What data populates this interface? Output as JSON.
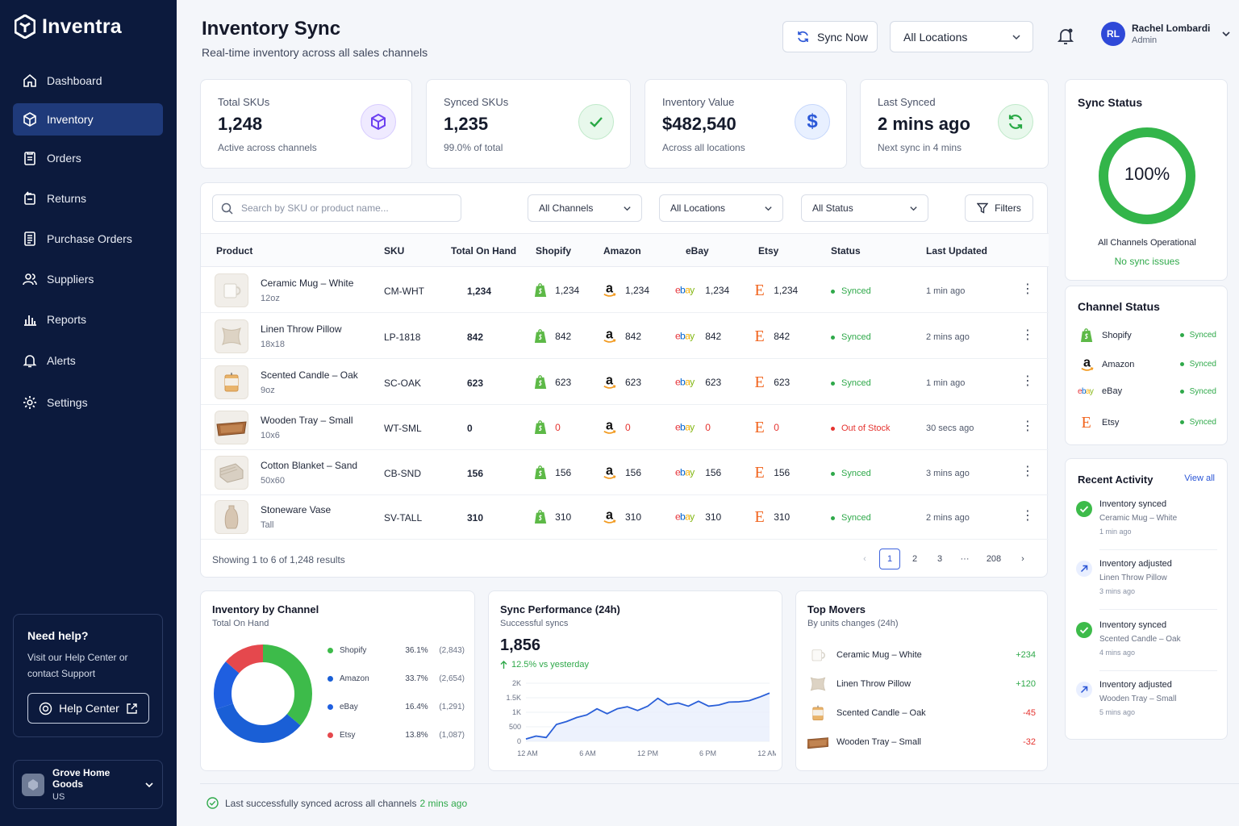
{
  "brand": {
    "name": "Inventra"
  },
  "nav": [
    {
      "label": "Dashboard",
      "icon": "home-icon"
    },
    {
      "label": "Inventory",
      "icon": "box-icon",
      "active": true
    },
    {
      "label": "Orders",
      "icon": "clipboard-icon"
    },
    {
      "label": "Returns",
      "icon": "return-icon"
    },
    {
      "label": "Purchase Orders",
      "icon": "document-icon"
    },
    {
      "label": "Suppliers",
      "icon": "users-icon"
    },
    {
      "label": "Reports",
      "icon": "bar-chart-icon"
    },
    {
      "label": "Alerts",
      "icon": "bell-icon"
    },
    {
      "label": "Settings",
      "icon": "gear-icon"
    }
  ],
  "help": {
    "title": "Need help?",
    "text": "Visit our Help Center or contact Support",
    "button": "Help Center"
  },
  "store": {
    "name": "Grove Home Goods",
    "region": "US"
  },
  "header": {
    "title": "Inventory Sync",
    "subtitle": "Real-time inventory across all sales channels",
    "sync_button": "Sync Now",
    "location": "All Locations"
  },
  "user": {
    "initials": "RL",
    "name": "Rachel Lombardi",
    "role": "Admin"
  },
  "kpis": {
    "total": {
      "label": "Total SKUs",
      "value": "1,248",
      "sub": "Active across channels"
    },
    "synced": {
      "label": "Synced SKUs",
      "value": "1,235",
      "sub": "99.0% of total"
    },
    "value": {
      "label": "Inventory Value",
      "value": "$482,540",
      "sub": "Across all locations"
    },
    "last": {
      "label": "Last Synced",
      "value": "2 mins ago",
      "sub": "Next sync in 4 mins"
    }
  },
  "filters": {
    "search_placeholder": "Search by SKU or product name...",
    "channels": "All Channels",
    "locations": "All Locations",
    "status": "All Status",
    "filters_button": "Filters"
  },
  "table": {
    "headers": {
      "product": "Product",
      "sku": "SKU",
      "total": "Total On Hand",
      "shopify": "Shopify",
      "amazon": "Amazon",
      "ebay": "eBay",
      "etsy": "Etsy",
      "status": "Status",
      "updated": "Last Updated"
    },
    "rows": [
      {
        "name": "Ceramic Mug – White",
        "variant": "12oz",
        "sku": "CM-WHT",
        "total": "1,234",
        "shopify": "1,234",
        "amazon": "1,234",
        "ebay": "1,234",
        "etsy": "1,234",
        "status": "Synced",
        "updated": "1 min ago"
      },
      {
        "name": "Linen Throw Pillow",
        "variant": "18x18",
        "sku": "LP-1818",
        "total": "842",
        "shopify": "842",
        "amazon": "842",
        "ebay": "842",
        "etsy": "842",
        "status": "Synced",
        "updated": "2 mins ago"
      },
      {
        "name": "Scented Candle – Oak",
        "variant": "9oz",
        "sku": "SC-OAK",
        "total": "623",
        "shopify": "623",
        "amazon": "623",
        "ebay": "623",
        "etsy": "623",
        "status": "Synced",
        "updated": "1 min ago"
      },
      {
        "name": "Wooden Tray – Small",
        "variant": "10x6",
        "sku": "WT-SML",
        "total": "0",
        "shopify": "0",
        "amazon": "0",
        "ebay": "0",
        "etsy": "0",
        "status": "Out of Stock",
        "updated": "30 secs ago"
      },
      {
        "name": "Cotton Blanket – Sand",
        "variant": "50x60",
        "sku": "CB-SND",
        "total": "156",
        "shopify": "156",
        "amazon": "156",
        "ebay": "156",
        "etsy": "156",
        "status": "Synced",
        "updated": "3 mins ago"
      },
      {
        "name": "Stoneware Vase",
        "variant": "Tall",
        "sku": "SV-TALL",
        "total": "310",
        "shopify": "310",
        "amazon": "310",
        "ebay": "310",
        "etsy": "310",
        "status": "Synced",
        "updated": "2 mins ago"
      }
    ],
    "showing": "Showing 1 to 6 of 1,248 results",
    "pages": [
      "1",
      "2",
      "3",
      "···",
      "208"
    ]
  },
  "sync_status": {
    "title": "Sync Status",
    "percent": "100%",
    "percent_value": 100,
    "line1": "All Channels Operational",
    "line2": "No sync issues"
  },
  "channel_status": {
    "title": "Channel Status",
    "items": [
      {
        "name": "Shopify",
        "status": "Synced"
      },
      {
        "name": "Amazon",
        "status": "Synced"
      },
      {
        "name": "eBay",
        "status": "Synced"
      },
      {
        "name": "Etsy",
        "status": "Synced"
      }
    ]
  },
  "activity": {
    "title": "Recent Activity",
    "view_all": "View all",
    "items": [
      {
        "title": "Inventory synced",
        "item": "Ceramic Mug – White",
        "time": "1 min ago",
        "kind": "synced"
      },
      {
        "title": "Inventory adjusted",
        "item": "Linen Throw Pillow",
        "time": "3 mins ago",
        "kind": "adjusted"
      },
      {
        "title": "Inventory synced",
        "item": "Scented Candle – Oak",
        "time": "4 mins ago",
        "kind": "synced"
      },
      {
        "title": "Inventory adjusted",
        "item": "Wooden Tray – Small",
        "time": "5 mins ago",
        "kind": "adjusted"
      }
    ]
  },
  "by_channel": {
    "title": "Inventory by Channel",
    "subtitle": "Total On Hand"
  },
  "sync_perf": {
    "title": "Sync Performance (24h)",
    "subtitle": "Successful syncs",
    "value": "1,856",
    "delta": "12.5% vs yesterday"
  },
  "movers": {
    "title": "Top Movers",
    "subtitle": "By units changes (24h)",
    "items": [
      {
        "name": "Ceramic Mug – White",
        "change": "+234"
      },
      {
        "name": "Linen Throw Pillow",
        "change": "+120"
      },
      {
        "name": "Scented Candle – Oak",
        "change": "-45"
      },
      {
        "name": "Wooden Tray – Small",
        "change": "-32"
      }
    ]
  },
  "bottom": {
    "text": "Last successfully synced across all channels",
    "time": "2 mins ago"
  },
  "colors": {
    "shopify": "#3dbb4a",
    "amazon": "#1a5fd6",
    "ebay": "#1f5fe0",
    "etsy": "#e5484d",
    "green": "#2fa94a",
    "red": "#e5332f"
  },
  "chart_data": [
    {
      "type": "pie",
      "categories": [
        "Shopify",
        "Amazon",
        "eBay",
        "Etsy"
      ],
      "values": [
        2843,
        2654,
        1291,
        1087
      ],
      "percent_labels": [
        "36.1%",
        "33.7%",
        "16.4%",
        "13.8%"
      ],
      "count_labels": [
        "(2,843)",
        "(2,654)",
        "(1,291)",
        "(1,087)"
      ],
      "colors": [
        "#3dbb4a",
        "#1a5fd6",
        "#1f5fe0",
        "#e5484d"
      ],
      "title": "Inventory by Channel"
    },
    {
      "type": "area",
      "title": "Sync Performance (24h)",
      "x_ticks": [
        "12 AM",
        "6 AM",
        "12 PM",
        "6 PM",
        "12 AM"
      ],
      "y_ticks": [
        "2K",
        "1.5K",
        "1K",
        "500",
        "0"
      ],
      "ylim": [
        0,
        2000
      ],
      "x_hours": [
        0,
        1,
        2,
        3,
        4,
        5,
        6,
        7,
        8,
        9,
        10,
        11,
        12,
        13,
        14,
        15,
        16,
        17,
        18,
        19,
        20,
        21,
        22,
        23,
        24
      ],
      "values": [
        80,
        180,
        130,
        580,
        680,
        820,
        910,
        1120,
        950,
        1120,
        1190,
        1060,
        1210,
        1480,
        1260,
        1320,
        1210,
        1380,
        1210,
        1250,
        1350,
        1360,
        1400,
        1520,
        1660
      ]
    }
  ]
}
